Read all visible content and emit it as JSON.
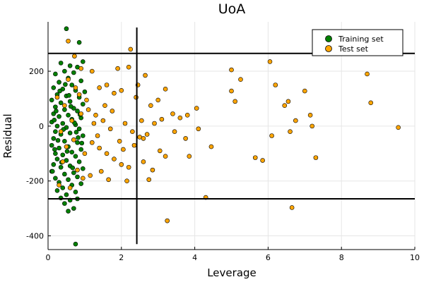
{
  "chart_data": {
    "type": "scatter",
    "title": "UoA",
    "xlabel": "Leverage",
    "ylabel": "Residual",
    "xlim": [
      0,
      10
    ],
    "ylim": [
      -450,
      380
    ],
    "xticks": [
      0,
      2,
      4,
      6,
      8,
      10
    ],
    "yticks": [
      -400,
      -200,
      0,
      200
    ],
    "grid": true,
    "legend_position": "top-right",
    "thresholds": {
      "leverage_warning": 2.42,
      "residual_upper": 265,
      "residual_lower": -265
    },
    "series": [
      {
        "name": "Training set",
        "color": "#008000",
        "points": [
          [
            0.5,
            355
          ],
          [
            0.85,
            305
          ],
          [
            0.35,
            230
          ],
          [
            0.6,
            220
          ],
          [
            0.8,
            215
          ],
          [
            0.95,
            235
          ],
          [
            0.45,
            200
          ],
          [
            0.7,
            195
          ],
          [
            0.2,
            190
          ],
          [
            0.55,
            175
          ],
          [
            0.3,
            160
          ],
          [
            0.9,
            165
          ],
          [
            0.65,
            150
          ],
          [
            0.15,
            140
          ],
          [
            0.4,
            135
          ],
          [
            0.75,
            130
          ],
          [
            1.0,
            125
          ],
          [
            0.25,
            115
          ],
          [
            0.5,
            110
          ],
          [
            0.85,
            105
          ],
          [
            0.1,
            95
          ],
          [
            0.6,
            90
          ],
          [
            0.35,
            85
          ],
          [
            0.95,
            80
          ],
          [
            0.2,
            70
          ],
          [
            0.7,
            65
          ],
          [
            0.45,
            60
          ],
          [
            0.8,
            55
          ],
          [
            0.15,
            45
          ],
          [
            0.55,
            40
          ],
          [
            0.3,
            35
          ],
          [
            0.9,
            30
          ],
          [
            0.65,
            25
          ],
          [
            0.1,
            15
          ],
          [
            0.4,
            10
          ],
          [
            0.75,
            5
          ],
          [
            0.25,
            0
          ],
          [
            0.5,
            -5
          ],
          [
            0.85,
            -10
          ],
          [
            0.2,
            -20
          ],
          [
            0.6,
            -25
          ],
          [
            0.35,
            -30
          ],
          [
            0.95,
            -35
          ],
          [
            0.15,
            -45
          ],
          [
            0.7,
            -50
          ],
          [
            0.45,
            -55
          ],
          [
            0.8,
            -60
          ],
          [
            0.1,
            -70
          ],
          [
            0.55,
            -75
          ],
          [
            0.3,
            -80
          ],
          [
            0.9,
            -85
          ],
          [
            0.65,
            -95
          ],
          [
            0.2,
            -100
          ],
          [
            0.4,
            -105
          ],
          [
            0.75,
            -110
          ],
          [
            0.25,
            -120
          ],
          [
            0.5,
            -125
          ],
          [
            0.85,
            -130
          ],
          [
            0.15,
            -140
          ],
          [
            0.6,
            -145
          ],
          [
            0.35,
            -150
          ],
          [
            0.95,
            -155
          ],
          [
            0.1,
            -165
          ],
          [
            0.7,
            -170
          ],
          [
            0.45,
            -175
          ],
          [
            0.8,
            -185
          ],
          [
            0.2,
            -190
          ],
          [
            0.55,
            -195
          ],
          [
            0.3,
            -205
          ],
          [
            0.9,
            -210
          ],
          [
            0.65,
            -215
          ],
          [
            0.4,
            -225
          ],
          [
            0.25,
            -235
          ],
          [
            0.75,
            -240
          ],
          [
            0.5,
            -250
          ],
          [
            0.35,
            -262
          ],
          [
            0.6,
            -270
          ],
          [
            0.45,
            -282
          ],
          [
            0.8,
            -265
          ],
          [
            0.7,
            -300
          ],
          [
            0.55,
            -310
          ],
          [
            0.75,
            -430
          ],
          [
            0.12,
            -165
          ],
          [
            0.22,
            55
          ],
          [
            0.42,
            -12
          ],
          [
            0.62,
            72
          ],
          [
            0.82,
            -42
          ],
          [
            0.32,
            128
          ],
          [
            0.52,
            -92
          ],
          [
            0.72,
            12
          ],
          [
            0.92,
            -62
          ],
          [
            0.17,
            22
          ],
          [
            0.37,
            -132
          ],
          [
            0.57,
            112
          ],
          [
            0.77,
            -22
          ],
          [
            0.27,
            -52
          ],
          [
            0.47,
            152
          ],
          [
            0.67,
            -152
          ],
          [
            0.87,
            42
          ],
          [
            0.18,
            -85
          ]
        ]
      },
      {
        "name": "Test set",
        "color": "#ffa500",
        "points": [
          [
            0.55,
            310
          ],
          [
            0.72,
            255
          ],
          [
            2.25,
            280
          ],
          [
            0.9,
            210
          ],
          [
            1.2,
            200
          ],
          [
            1.9,
            210
          ],
          [
            2.2,
            215
          ],
          [
            2.65,
            185
          ],
          [
            3.2,
            135
          ],
          [
            4.05,
            65
          ],
          [
            1.4,
            140
          ],
          [
            1.6,
            150
          ],
          [
            1.8,
            120
          ],
          [
            2.0,
            130
          ],
          [
            2.4,
            105
          ],
          [
            2.8,
            75
          ],
          [
            3.0,
            95
          ],
          [
            3.4,
            45
          ],
          [
            3.6,
            30
          ],
          [
            3.8,
            40
          ],
          [
            1.1,
            60
          ],
          [
            1.3,
            40
          ],
          [
            1.5,
            20
          ],
          [
            1.7,
            -10
          ],
          [
            2.1,
            10
          ],
          [
            2.3,
            -20
          ],
          [
            2.5,
            -40
          ],
          [
            2.7,
            -30
          ],
          [
            2.9,
            10
          ],
          [
            3.1,
            25
          ],
          [
            1.2,
            -60
          ],
          [
            1.4,
            -80
          ],
          [
            1.6,
            -100
          ],
          [
            1.8,
            -120
          ],
          [
            2.0,
            -140
          ],
          [
            2.2,
            -150
          ],
          [
            2.6,
            -130
          ],
          [
            2.85,
            -160
          ],
          [
            3.05,
            -90
          ],
          [
            3.2,
            -110
          ],
          [
            1.15,
            -180
          ],
          [
            1.45,
            -165
          ],
          [
            2.15,
            -200
          ],
          [
            2.75,
            -195
          ],
          [
            3.45,
            -20
          ],
          [
            3.75,
            -45
          ],
          [
            4.1,
            -10
          ],
          [
            4.3,
            -260
          ],
          [
            3.25,
            -345
          ],
          [
            4.45,
            -75
          ],
          [
            3.85,
            -110
          ],
          [
            5.0,
            205
          ],
          [
            5.25,
            170
          ],
          [
            5.0,
            128
          ],
          [
            5.1,
            90
          ],
          [
            6.05,
            235
          ],
          [
            6.2,
            150
          ],
          [
            6.45,
            75
          ],
          [
            6.55,
            90
          ],
          [
            6.75,
            20
          ],
          [
            6.1,
            -35
          ],
          [
            6.6,
            -20
          ],
          [
            5.65,
            -115
          ],
          [
            5.85,
            -125
          ],
          [
            6.65,
            -297
          ],
          [
            7.0,
            128
          ],
          [
            7.15,
            40
          ],
          [
            7.2,
            0
          ],
          [
            7.3,
            -115
          ],
          [
            8.7,
            190
          ],
          [
            8.8,
            85
          ],
          [
            9.55,
            -5
          ],
          [
            0.3,
            -215
          ],
          [
            0.6,
            -225
          ],
          [
            0.95,
            -190
          ],
          [
            0.8,
            -160
          ],
          [
            0.4,
            -130
          ],
          [
            1.0,
            -100
          ],
          [
            0.5,
            -75
          ],
          [
            0.7,
            -50
          ],
          [
            0.35,
            -20
          ],
          [
            0.65,
            20
          ],
          [
            0.9,
            45
          ],
          [
            0.45,
            75
          ],
          [
            0.25,
            105
          ],
          [
            0.75,
            140
          ],
          [
            0.55,
            170
          ],
          [
            0.85,
            115
          ],
          [
            1.05,
            95
          ],
          [
            1.25,
            10
          ],
          [
            1.35,
            -35
          ],
          [
            1.55,
            75
          ],
          [
            1.75,
            55
          ],
          [
            1.95,
            -55
          ],
          [
            2.35,
            -70
          ],
          [
            2.55,
            20
          ],
          [
            2.45,
            150
          ],
          [
            2.05,
            -85
          ],
          [
            1.65,
            -195
          ],
          [
            2.6,
            -45
          ]
        ]
      }
    ]
  }
}
